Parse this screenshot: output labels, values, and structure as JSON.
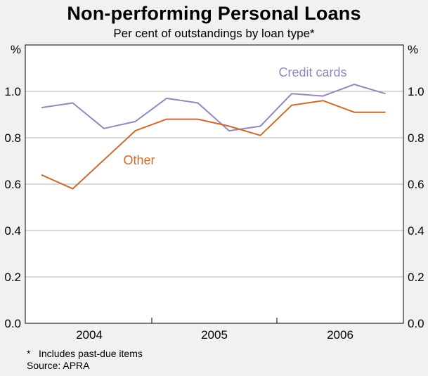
{
  "title": "Non-performing Personal Loans",
  "subtitle": "Per cent of outstandings by loan type*",
  "footnote": "Includes past-due items",
  "footnote_marker": "*",
  "source": "Source: APRA",
  "chart_data": {
    "type": "line",
    "y_unit_label": "%",
    "ylim": [
      0.0,
      1.2
    ],
    "yticks": [
      "0.0",
      "0.2",
      "0.4",
      "0.6",
      "0.8",
      "1.0"
    ],
    "ytick_values": [
      0.0,
      0.2,
      0.4,
      0.6,
      0.8,
      1.0
    ],
    "year_labels": [
      "2004",
      "2005",
      "2006"
    ],
    "x": [
      "2003-Q3",
      "2003-Q4",
      "2004-Q1",
      "2004-Q2",
      "2004-Q3",
      "2004-Q4",
      "2005-Q1",
      "2005-Q2",
      "2005-Q3",
      "2005-Q4",
      "2006-Q1",
      "2006-Q2",
      "2006-Q3"
    ],
    "grid": true,
    "series": [
      {
        "name": "Credit cards",
        "color": "#8f8ab8",
        "values": [
          0.93,
          0.95,
          0.84,
          0.87,
          0.97,
          0.95,
          0.83,
          0.85,
          0.99,
          0.98,
          1.03,
          0.99,
          null
        ]
      },
      {
        "name": "Other",
        "color": "#cc6a2c",
        "values": [
          0.64,
          0.58,
          null,
          0.83,
          0.88,
          0.88,
          0.85,
          0.81,
          0.94,
          0.96,
          0.91,
          0.91,
          null
        ]
      }
    ]
  }
}
